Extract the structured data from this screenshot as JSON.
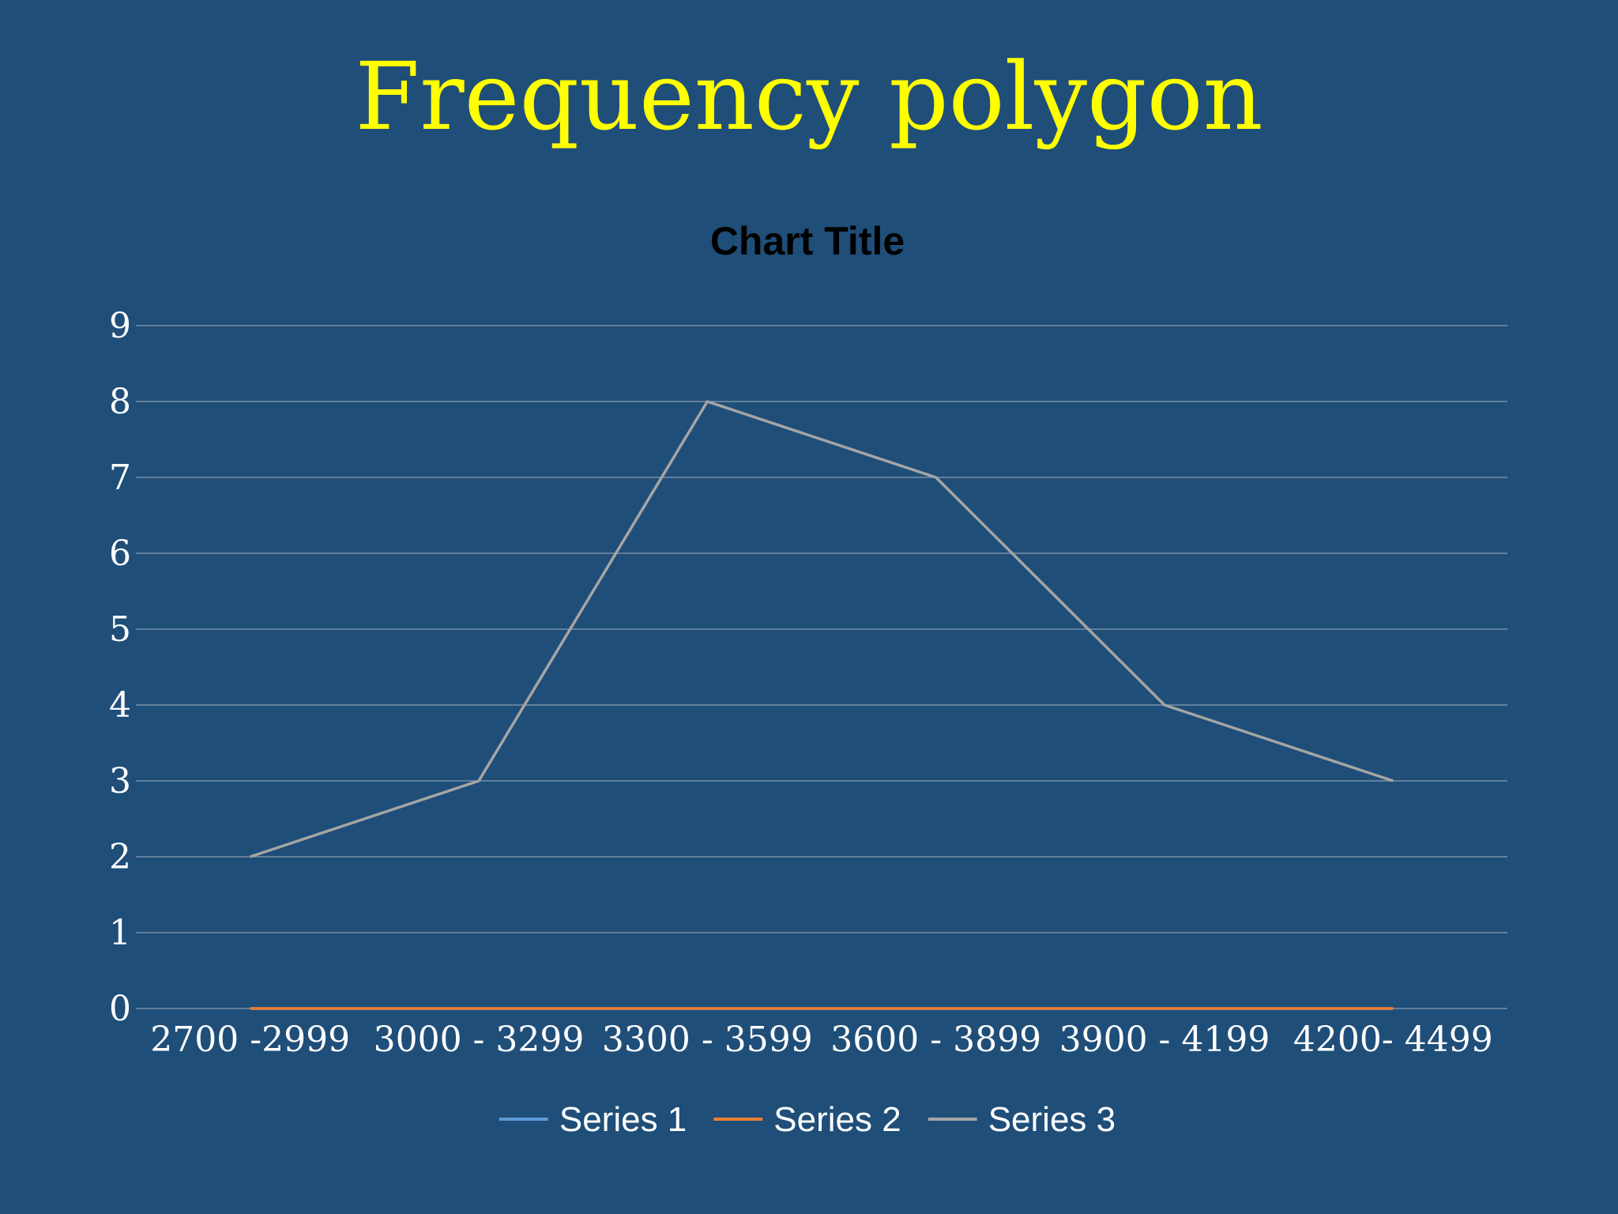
{
  "slide": {
    "title": "Frequency polygon",
    "title_color": "#ffff00",
    "background": "#1f4e79"
  },
  "chart_data": {
    "type": "line",
    "title": "Chart Title",
    "categories": [
      "2700  -2999",
      "3000 - 3299",
      "3300 - 3599",
      "3600 - 3899",
      "3900 - 4199",
      "4200- 4499"
    ],
    "series": [
      {
        "name": "Series 1",
        "color": "#5b9bd5",
        "values": [
          0,
          0,
          0,
          0,
          0,
          0
        ]
      },
      {
        "name": "Series 2",
        "color": "#ed7d31",
        "values": [
          0,
          0,
          0,
          0,
          0,
          0
        ]
      },
      {
        "name": "Series 3",
        "color": "#a5a5a5",
        "values": [
          2,
          3,
          8,
          7,
          4,
          3
        ]
      }
    ],
    "ylim": [
      0,
      9
    ],
    "yticks": [
      0,
      1,
      2,
      3,
      4,
      5,
      6,
      7,
      8,
      9
    ],
    "xlabel": "",
    "ylabel": "",
    "grid": true,
    "legend_position": "bottom"
  }
}
